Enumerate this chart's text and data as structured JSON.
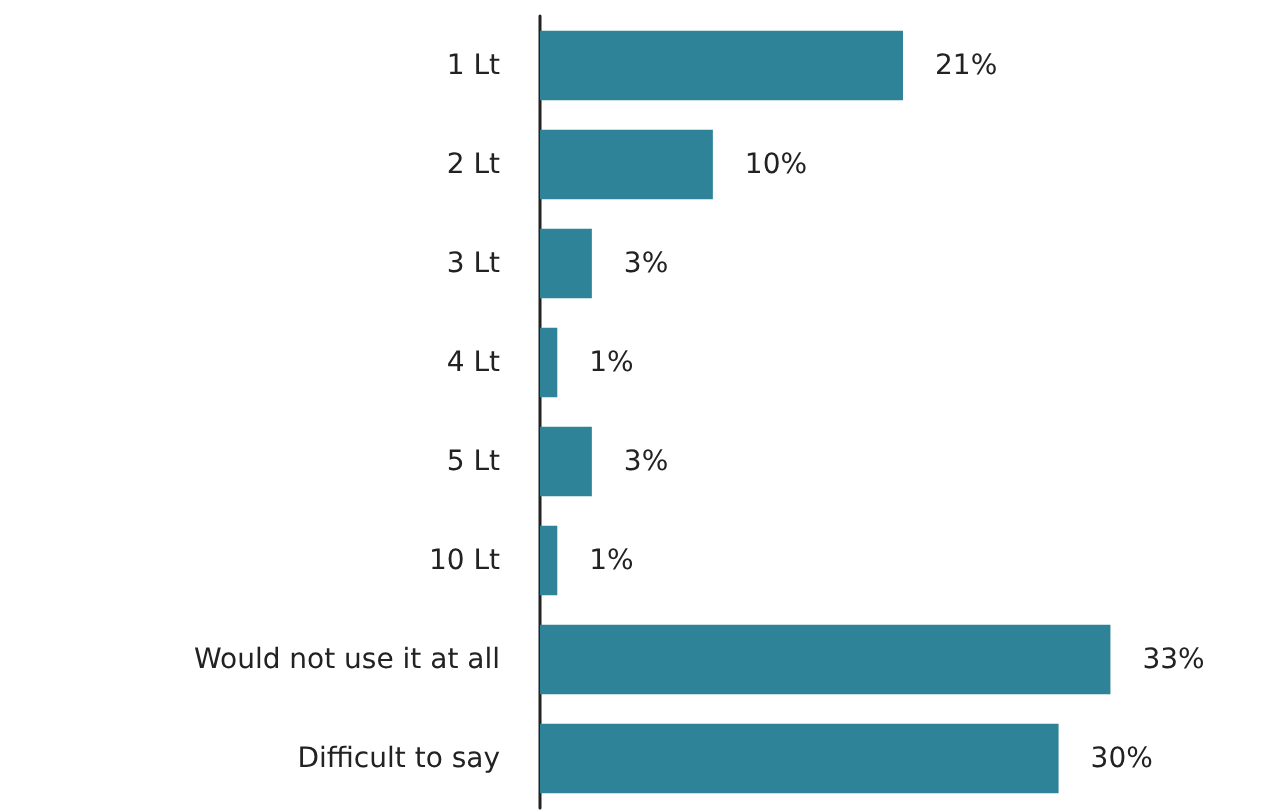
{
  "chart_data": {
    "type": "bar",
    "orientation": "horizontal",
    "categories": [
      "1 Lt",
      "2 Lt",
      "3 Lt",
      "4 Lt",
      "5 Lt",
      "10 Lt",
      "Would not use it at all",
      "Difficult to say"
    ],
    "values": [
      21,
      10,
      3,
      1,
      3,
      1,
      33,
      30
    ],
    "value_labels": [
      "21%",
      "10%",
      "3%",
      "1%",
      "3%",
      "1%",
      "33%",
      "30%"
    ],
    "color": "#2e8399"
  }
}
